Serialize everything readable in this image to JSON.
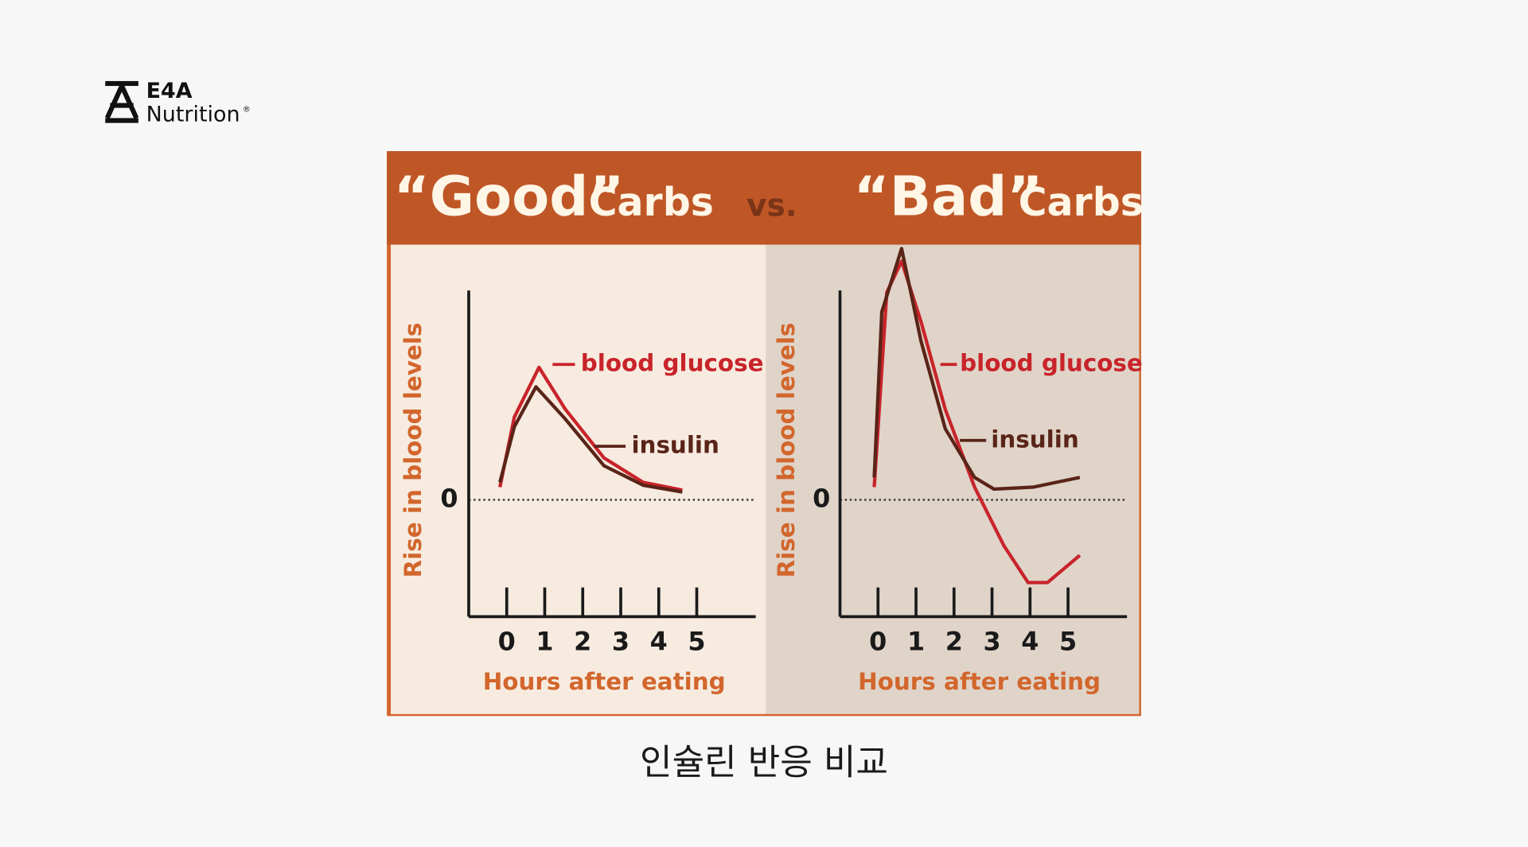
{
  "logo": {
    "name": "E4A",
    "sub": "Nutrition",
    "mark": "®"
  },
  "banner": {
    "left_quote": "“Good”",
    "left_word": "Carbs",
    "vs": "vs.",
    "right_quote": "“Bad”",
    "right_word": "Carbs"
  },
  "chart_data": [
    {
      "type": "line",
      "x_label": "Hours after eating",
      "y_label": "Rise in blood levels",
      "xlim": [
        -1,
        6.5
      ],
      "ylim": [
        -1.2,
        2.6
      ],
      "xticks": [
        0,
        1,
        2,
        3,
        4,
        5
      ],
      "yticks": [
        0
      ],
      "grid": true,
      "series": [
        {
          "name": "blood glucose",
          "color": "#c8242a",
          "x": [
            -0.18,
            0.2,
            0.85,
            1.54,
            2.56,
            3.59,
            4.62
          ],
          "values": [
            0.13,
            0.85,
            1.36,
            0.93,
            0.43,
            0.18,
            0.1
          ]
        },
        {
          "name": "insulin",
          "color": "#5a2418",
          "x": [
            -0.18,
            0.2,
            0.77,
            1.54,
            2.56,
            3.59,
            4.62
          ],
          "values": [
            0.18,
            0.75,
            1.16,
            0.83,
            0.35,
            0.15,
            0.08
          ]
        }
      ]
    },
    {
      "type": "line",
      "x_label": "Hours after eating",
      "y_label": "Rise in blood levels",
      "xlim": [
        -1,
        6.5
      ],
      "ylim": [
        -1.2,
        2.6
      ],
      "xticks": [
        0,
        1,
        2,
        3,
        4,
        5
      ],
      "yticks": [
        0
      ],
      "grid": true,
      "series": [
        {
          "name": "blood glucose",
          "color": "#c8242a",
          "x": [
            -0.1,
            0.23,
            0.62,
            1.13,
            1.77,
            2.54,
            3.31,
            3.95,
            4.46,
            5.31
          ],
          "values": [
            0.13,
            2.13,
            2.45,
            1.83,
            0.93,
            0.13,
            -0.47,
            -0.85,
            -0.85,
            -0.57
          ]
        },
        {
          "name": "insulin",
          "color": "#5a2418",
          "x": [
            -0.1,
            0.1,
            0.62,
            1.13,
            1.77,
            2.54,
            3.05,
            4.08,
            5.31
          ],
          "values": [
            0.23,
            1.93,
            2.58,
            1.63,
            0.73,
            0.23,
            0.11,
            0.13,
            0.23
          ]
        }
      ]
    }
  ],
  "caption": "인슐린 반응 비교"
}
